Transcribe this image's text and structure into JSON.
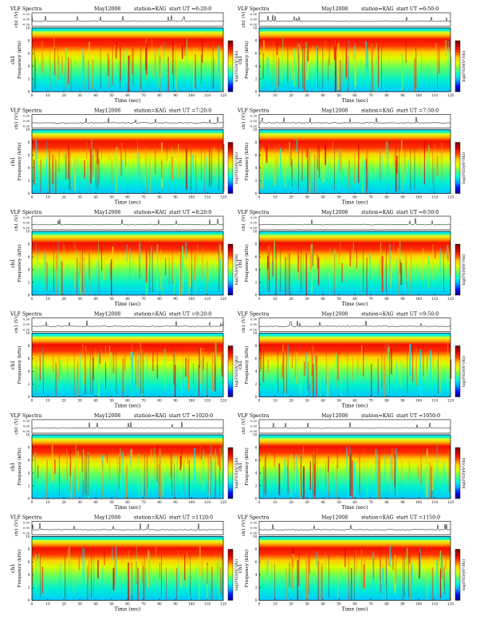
{
  "page": {
    "common": {
      "title": "VLF Spectra",
      "date": "May12008",
      "station": "station=KAG",
      "ut_prefix": "start  UT  =",
      "time_label": "Time  (sec)",
      "wave_label": "ch1 (V)",
      "freq_label_left": "ch1",
      "freq_label": "Frequency  (kHz)",
      "colorbar_label": "log(PSD)(V²/Hz)",
      "x_ticks": [
        "0",
        "10",
        "20",
        "30",
        "40",
        "50",
        "60",
        "70",
        "80",
        "90",
        "100",
        "110",
        "120"
      ],
      "y_ticks": [
        "0",
        "2",
        "4",
        "6",
        "8",
        "10"
      ],
      "wave_ticks": [
        "0.30",
        "0.00",
        "-0.30"
      ],
      "colorbar_colors": [
        "#00007a",
        "#0010ff",
        "#00a8ff",
        "#00ffe0",
        "#60ff60",
        "#e0ff00",
        "#ffd000",
        "#ff4000",
        "#d00000",
        "#700000"
      ]
    },
    "panels": [
      {
        "ut": "6:20:0"
      },
      {
        "ut": "6:50:0"
      },
      {
        "ut": "7:20:0"
      },
      {
        "ut": "7:50:0"
      },
      {
        "ut": "8:20:0"
      },
      {
        "ut": "8:50:0"
      },
      {
        "ut": "9:20:0"
      },
      {
        "ut": "9:50:0"
      },
      {
        "ut": "1020:0"
      },
      {
        "ut": "1050:0"
      },
      {
        "ut": "1120:0"
      },
      {
        "ut": "1150:0"
      }
    ]
  },
  "chart_data": [
    {
      "type": "heatmap",
      "title": "VLF Spectra  May12008  station=KAG  start UT =6:20:0",
      "xlabel": "Time (sec)",
      "ylabel": "Frequency (kHz)",
      "xlim": [
        0,
        120
      ],
      "ylim": [
        0,
        10
      ],
      "colorbar": "log(PSD)(V²/Hz)"
    },
    {
      "type": "heatmap",
      "title": "VLF Spectra  May12008  station=KAG  start UT =6:50:0",
      "xlabel": "Time (sec)",
      "ylabel": "Frequency (kHz)",
      "xlim": [
        0,
        120
      ],
      "ylim": [
        0,
        10
      ],
      "colorbar": "log(PSD)(V²/Hz)"
    },
    {
      "type": "heatmap",
      "title": "VLF Spectra  May12008  station=KAG  start UT =7:20:0",
      "xlabel": "Time (sec)",
      "ylabel": "Frequency (kHz)",
      "xlim": [
        0,
        120
      ],
      "ylim": [
        0,
        10
      ],
      "colorbar": "log(PSD)(V²/Hz)"
    },
    {
      "type": "heatmap",
      "title": "VLF Spectra  May12008  station=KAG  start UT =7:50:0",
      "xlabel": "Time (sec)",
      "ylabel": "Frequency (kHz)",
      "xlim": [
        0,
        120
      ],
      "ylim": [
        0,
        10
      ],
      "colorbar": "log(PSD)(V²/Hz)"
    },
    {
      "type": "heatmap",
      "title": "VLF Spectra  May12008  station=KAG  start UT =8:20:0",
      "xlabel": "Time (sec)",
      "ylabel": "Frequency (kHz)",
      "xlim": [
        0,
        120
      ],
      "ylim": [
        0,
        10
      ],
      "colorbar": "log(PSD)(V²/Hz)"
    },
    {
      "type": "heatmap",
      "title": "VLF Spectra  May12008  station=KAG  start UT =8:50:0",
      "xlabel": "Time (sec)",
      "ylabel": "Frequency (kHz)",
      "xlim": [
        0,
        120
      ],
      "ylim": [
        0,
        10
      ],
      "colorbar": "log(PSD)(V²/Hz)"
    },
    {
      "type": "heatmap",
      "title": "VLF Spectra  May12008  station=KAG  start UT =9:20:0",
      "xlabel": "Time (sec)",
      "ylabel": "Frequency (kHz)",
      "xlim": [
        0,
        120
      ],
      "ylim": [
        0,
        10
      ],
      "colorbar": "log(PSD)(V²/Hz)"
    },
    {
      "type": "heatmap",
      "title": "VLF Spectra  May12008  station=KAG  start UT =9:50:0",
      "xlabel": "Time (sec)",
      "ylabel": "Frequency (kHz)",
      "xlim": [
        0,
        120
      ],
      "ylim": [
        0,
        10
      ],
      "colorbar": "log(PSD)(V²/Hz)"
    },
    {
      "type": "heatmap",
      "title": "VLF Spectra  May12008  station=KAG  start UT =1020:0",
      "xlabel": "Time (sec)",
      "ylabel": "Frequency (kHz)",
      "xlim": [
        0,
        120
      ],
      "ylim": [
        0,
        10
      ],
      "colorbar": "log(PSD)(V²/Hz)"
    },
    {
      "type": "heatmap",
      "title": "VLF Spectra  May12008  station=KAG  start UT =1050:0",
      "xlabel": "Time (sec)",
      "ylabel": "Frequency (kHz)",
      "xlim": [
        0,
        120
      ],
      "ylim": [
        0,
        10
      ],
      "colorbar": "log(PSD)(V²/Hz)"
    },
    {
      "type": "heatmap",
      "title": "VLF Spectra  May12008  station=KAG  start UT =1120:0",
      "xlabel": "Time (sec)",
      "ylabel": "Frequency (kHz)",
      "xlim": [
        0,
        120
      ],
      "ylim": [
        0,
        10
      ],
      "colorbar": "log(PSD)(V²/Hz)"
    },
    {
      "type": "heatmap",
      "title": "VLF Spectra  May12008  station=KAG  start UT =1150:0",
      "xlabel": "Time (sec)",
      "ylabel": "Frequency (kHz)",
      "xlim": [
        0,
        120
      ],
      "ylim": [
        0,
        10
      ],
      "colorbar": "log(PSD)(V²/Hz)"
    }
  ]
}
